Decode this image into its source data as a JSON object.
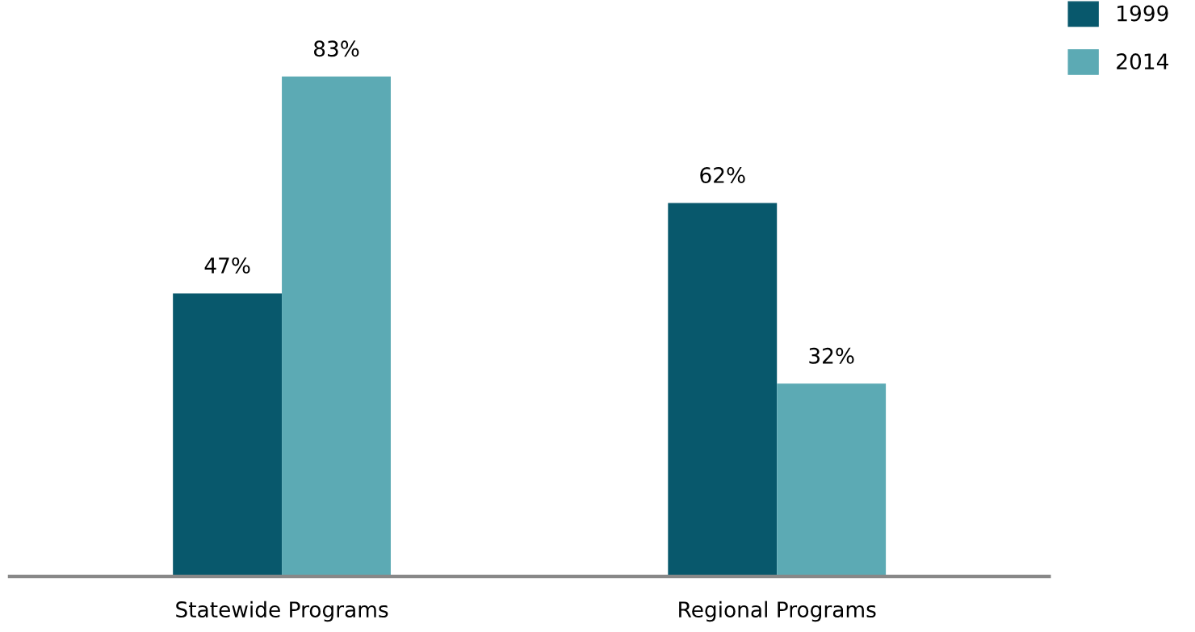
{
  "chart_data": {
    "type": "bar",
    "categories": [
      "Statewide Programs",
      "Regional Programs"
    ],
    "series": [
      {
        "name": "1999",
        "color": "#08586c",
        "values": [
          47,
          62
        ],
        "value_labels": [
          "47%",
          "62%"
        ]
      },
      {
        "name": "2014",
        "color": "#5caab4",
        "values": [
          83,
          32
        ],
        "value_labels": [
          "83%",
          "32%"
        ]
      }
    ],
    "tick_labels": "x",
    "legend": "top right"
  }
}
